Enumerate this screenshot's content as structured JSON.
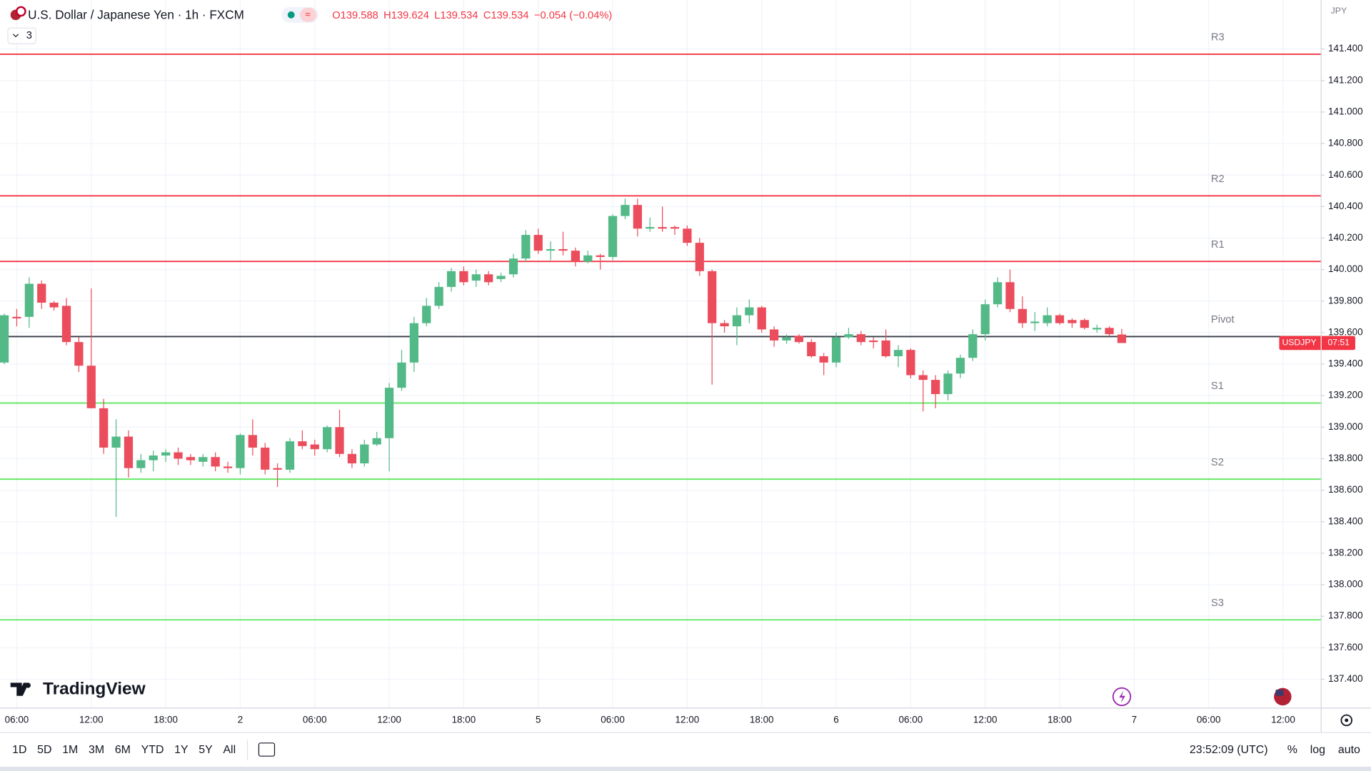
{
  "chart_data": {
    "type": "candlestick",
    "open": [
      139.41,
      139.7,
      139.7,
      139.91,
      139.79,
      139.77,
      139.54,
      139.39,
      139.12,
      138.87,
      138.94,
      138.74,
      138.79,
      138.82,
      138.84,
      138.81,
      138.78,
      138.81,
      138.75,
      138.74,
      138.95,
      138.87,
      138.74,
      138.73,
      138.91,
      138.89,
      138.86,
      139.0,
      138.83,
      138.77,
      138.89,
      138.93,
      139.25,
      139.41,
      139.66,
      139.77,
      139.89,
      139.99,
      139.93,
      139.97,
      139.94,
      139.97,
      140.07,
      140.22,
      140.12,
      140.13,
      140.12,
      140.05,
      140.09,
      140.08,
      140.34,
      140.41,
      140.26,
      140.27,
      140.27,
      140.26,
      140.17,
      139.99,
      139.66,
      139.64,
      139.71,
      139.76,
      139.62,
      139.55,
      139.58,
      139.54,
      139.45,
      139.41,
      139.57,
      139.59,
      139.55,
      139.55,
      139.45,
      139.49,
      139.33,
      139.3,
      139.21,
      139.34,
      139.44,
      139.59,
      139.78,
      139.92,
      139.75,
      139.66,
      139.66,
      139.71,
      139.68,
      139.68,
      139.62,
      139.63,
      139.588
    ],
    "high": [
      139.72,
      139.75,
      139.95,
      139.93,
      139.8,
      139.82,
      139.57,
      139.88,
      139.18,
      139.05,
      138.98,
      138.83,
      138.85,
      138.86,
      138.87,
      138.83,
      138.83,
      138.84,
      138.78,
      138.96,
      139.05,
      138.9,
      138.77,
      138.93,
      138.98,
      138.92,
      139.01,
      139.11,
      138.86,
      138.92,
      138.97,
      139.28,
      139.49,
      139.7,
      139.82,
      139.92,
      140.01,
      140.02,
      140.0,
      139.99,
      139.98,
      140.1,
      140.25,
      140.26,
      140.18,
      140.24,
      140.14,
      140.12,
      140.1,
      140.35,
      140.45,
      140.45,
      140.33,
      140.4,
      140.28,
      140.28,
      140.2,
      140.0,
      139.68,
      139.76,
      139.81,
      139.77,
      139.64,
      139.59,
      139.59,
      139.56,
      139.47,
      139.6,
      139.63,
      139.61,
      139.57,
      139.62,
      139.52,
      139.5,
      139.36,
      139.33,
      139.36,
      139.46,
      139.62,
      139.81,
      139.95,
      140.0,
      139.83,
      139.73,
      139.76,
      139.72,
      139.69,
      139.69,
      139.65,
      139.64,
      139.624
    ],
    "low": [
      139.4,
      139.64,
      139.63,
      139.75,
      139.74,
      139.52,
      139.35,
      139.12,
      138.83,
      138.43,
      138.68,
      138.71,
      138.72,
      138.78,
      138.76,
      138.76,
      138.75,
      138.72,
      138.71,
      138.7,
      138.82,
      138.7,
      138.62,
      138.71,
      138.86,
      138.82,
      138.84,
      138.81,
      138.74,
      138.75,
      138.88,
      138.72,
      139.23,
      139.35,
      139.64,
      139.75,
      139.86,
      139.9,
      139.89,
      139.9,
      139.92,
      139.95,
      140.05,
      140.1,
      140.06,
      140.09,
      140.02,
      140.04,
      140.0,
      140.06,
      140.32,
      140.21,
      140.24,
      140.24,
      140.22,
      140.15,
      139.96,
      139.27,
      139.6,
      139.52,
      139.66,
      139.6,
      139.51,
      139.53,
      139.53,
      139.44,
      139.33,
      139.38,
      139.56,
      139.52,
      139.5,
      139.44,
      139.38,
      139.31,
      139.1,
      139.12,
      139.17,
      139.31,
      139.42,
      139.55,
      139.76,
      139.73,
      139.63,
      139.61,
      139.64,
      139.65,
      139.63,
      139.62,
      139.6,
      139.58,
      139.534
    ],
    "close": [
      139.71,
      139.69,
      139.91,
      139.79,
      139.76,
      139.54,
      139.39,
      139.12,
      138.87,
      138.94,
      138.74,
      138.79,
      138.82,
      138.84,
      138.8,
      138.79,
      138.81,
      138.75,
      138.74,
      138.95,
      138.87,
      138.73,
      138.73,
      138.91,
      138.88,
      138.86,
      139.0,
      138.83,
      138.77,
      138.89,
      138.93,
      139.25,
      139.41,
      139.66,
      139.77,
      139.89,
      139.99,
      139.92,
      139.97,
      139.92,
      139.96,
      140.07,
      140.22,
      140.12,
      140.13,
      140.12,
      140.05,
      140.09,
      140.08,
      140.34,
      140.41,
      140.26,
      140.27,
      140.26,
      140.26,
      140.17,
      139.99,
      139.66,
      139.64,
      139.71,
      139.76,
      139.62,
      139.55,
      139.57,
      139.54,
      139.45,
      139.41,
      139.57,
      139.59,
      139.54,
      139.54,
      139.45,
      139.49,
      139.33,
      139.3,
      139.21,
      139.34,
      139.44,
      139.59,
      139.78,
      139.92,
      139.75,
      139.66,
      139.67,
      139.71,
      139.66,
      139.66,
      139.63,
      139.63,
      139.59,
      139.534
    ],
    "up_color": "#53b987",
    "down_color": "#eb4d5c",
    "ylim": [
      137.217,
      141.711
    ],
    "yticks": [
      {
        "value": 137.4,
        "label": "137.400"
      },
      {
        "value": 137.6,
        "label": "137.600"
      },
      {
        "value": 137.8,
        "label": "137.800"
      },
      {
        "value": 138.0,
        "label": "138.000"
      },
      {
        "value": 138.2,
        "label": "138.200"
      },
      {
        "value": 138.4,
        "label": "138.400"
      },
      {
        "value": 138.6,
        "label": "138.600"
      },
      {
        "value": 138.8,
        "label": "138.800"
      },
      {
        "value": 139.0,
        "label": "139.000"
      },
      {
        "value": 139.2,
        "label": "139.200"
      },
      {
        "value": 139.4,
        "label": "139.400"
      },
      {
        "value": 139.6,
        "label": "139.600"
      },
      {
        "value": 139.8,
        "label": "139.800"
      },
      {
        "value": 140.0,
        "label": "140.000"
      },
      {
        "value": 140.2,
        "label": "140.200"
      },
      {
        "value": 140.4,
        "label": "140.400"
      },
      {
        "value": 140.6,
        "label": "140.600"
      },
      {
        "value": 140.8,
        "label": "140.800"
      },
      {
        "value": 141.0,
        "label": "141.000"
      },
      {
        "value": 141.2,
        "label": "141.200"
      },
      {
        "value": 141.4,
        "label": "141.400"
      }
    ],
    "xlim": [
      -0.35,
      106.06
    ],
    "xticks": [
      {
        "value": 1,
        "label": "06:00"
      },
      {
        "value": 7,
        "label": "12:00"
      },
      {
        "value": 13,
        "label": "18:00"
      },
      {
        "value": 19,
        "label": "2"
      },
      {
        "value": 25,
        "label": "06:00"
      },
      {
        "value": 31,
        "label": "12:00"
      },
      {
        "value": 37,
        "label": "18:00"
      },
      {
        "value": 43,
        "label": "5"
      },
      {
        "value": 49,
        "label": "06:00"
      },
      {
        "value": 55,
        "label": "12:00"
      },
      {
        "value": 61,
        "label": "18:00"
      },
      {
        "value": 67,
        "label": "6"
      },
      {
        "value": 73,
        "label": "06:00"
      },
      {
        "value": 79,
        "label": "12:00"
      },
      {
        "value": 85,
        "label": "18:00"
      },
      {
        "value": 91,
        "label": "7"
      },
      {
        "value": 97,
        "label": "06:00"
      },
      {
        "value": 103,
        "label": "12:00"
      }
    ],
    "grid": true,
    "levels": [
      {
        "name": "R3",
        "value": 141.367,
        "color": "#f23645"
      },
      {
        "name": "R2",
        "value": 140.468,
        "color": "#f23645"
      },
      {
        "name": "R1",
        "value": 140.052,
        "color": "#f23645"
      },
      {
        "name": "Pivot",
        "value": 139.575,
        "color": "#363a45"
      },
      {
        "name": "S1",
        "value": 139.153,
        "color": "#5ee65e"
      },
      {
        "name": "S2",
        "value": 138.67,
        "color": "#5ee65e"
      },
      {
        "name": "S3",
        "value": 137.777,
        "color": "#5ee65e"
      }
    ],
    "last_price_label": {
      "symbol": "USDJPY",
      "countdown": "07:51",
      "color": "#f23645"
    }
  },
  "header": {
    "title": "U.S. Dollar / Japanese Yen · 1h · FXCM",
    "ohlc": [
      "O139.588",
      "H139.624",
      "L139.534",
      "C139.534",
      "−0.054 (−0.04%)"
    ],
    "indicators": "3"
  },
  "currency": "JPY",
  "brand": "TradingView",
  "toolbar": {
    "ranges": [
      "1D",
      "5D",
      "1M",
      "3M",
      "6M",
      "YTD",
      "1Y",
      "5Y",
      "All"
    ],
    "clock": "23:52:09 (UTC)",
    "options": [
      "%",
      "log",
      "auto"
    ]
  }
}
